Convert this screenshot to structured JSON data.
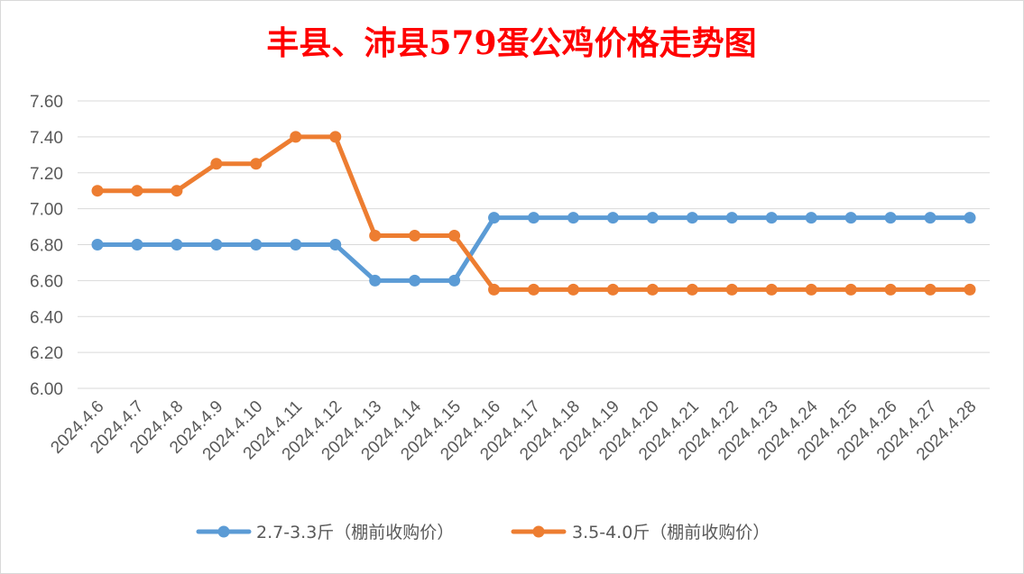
{
  "chart_data": {
    "type": "line",
    "title": "丰县、沛县579蛋公鸡价格走势图",
    "xlabel": "",
    "ylabel": "",
    "categories": [
      "2024.4.6",
      "2024.4.7",
      "2024.4.8",
      "2024.4.9",
      "2024.4.10",
      "2024.4.11",
      "2024.4.12",
      "2024.4.13",
      "2024.4.14",
      "2024.4.15",
      "2024.4.16",
      "2024.4.17",
      "2024.4.18",
      "2024.4.19",
      "2024.4.20",
      "2024.4.21",
      "2024.4.22",
      "2024.4.23",
      "2024.4.24",
      "2024.4.25",
      "2024.4.26",
      "2024.4.27",
      "2024.4.28"
    ],
    "ylim": [
      6.0,
      7.6
    ],
    "yticks": [
      "6.00",
      "6.20",
      "6.40",
      "6.60",
      "6.80",
      "7.00",
      "7.20",
      "7.40",
      "7.60"
    ],
    "grid": true,
    "legend_position": "bottom",
    "series": [
      {
        "name": "2.7-3.3斤（棚前收购价）",
        "color": "#5b9bd5",
        "values": [
          6.8,
          6.8,
          6.8,
          6.8,
          6.8,
          6.8,
          6.8,
          6.6,
          6.6,
          6.6,
          6.95,
          6.95,
          6.95,
          6.95,
          6.95,
          6.95,
          6.95,
          6.95,
          6.95,
          6.95,
          6.95,
          6.95,
          6.95
        ]
      },
      {
        "name": "3.5-4.0斤（棚前收购价）",
        "color": "#ed7d31",
        "values": [
          7.1,
          7.1,
          7.1,
          7.25,
          7.25,
          7.4,
          7.4,
          6.85,
          6.85,
          6.85,
          6.55,
          6.55,
          6.55,
          6.55,
          6.55,
          6.55,
          6.55,
          6.55,
          6.55,
          6.55,
          6.55,
          6.55,
          6.55
        ]
      }
    ]
  }
}
